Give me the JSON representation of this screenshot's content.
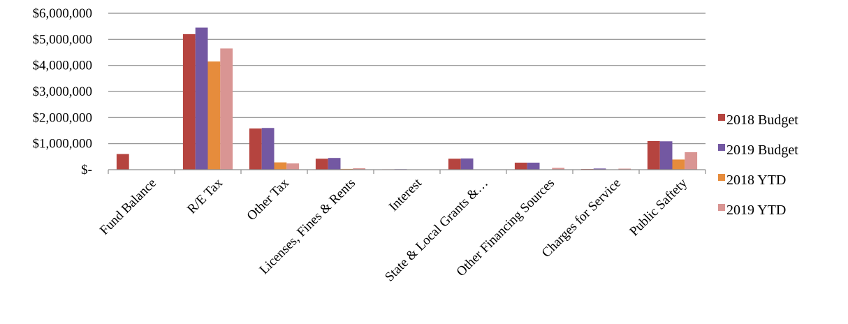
{
  "chart_data": {
    "type": "bar",
    "title": "",
    "xlabel": "",
    "ylabel": "",
    "ylim": [
      0,
      6000000
    ],
    "yticks": [
      {
        "value": 0,
        "label": "$-"
      },
      {
        "value": 1000000,
        "label": "$1,000,000"
      },
      {
        "value": 2000000,
        "label": "$2,000,000"
      },
      {
        "value": 3000000,
        "label": "$3,000,000"
      },
      {
        "value": 4000000,
        "label": "$4,000,000"
      },
      {
        "value": 5000000,
        "label": "$5,000,000"
      },
      {
        "value": 6000000,
        "label": "$6,000,000"
      }
    ],
    "grid": true,
    "legend_position": "right",
    "categories": [
      "Fund Balance",
      "R/E Tax",
      "Other Tax",
      "Licenses, Fines & Rents",
      "Interest",
      "State & Local Grants &…",
      "Other Financing Sources",
      "Charges for Service",
      "Public Saftety"
    ],
    "series": [
      {
        "name": "2018 Budget",
        "color": "#b5443f",
        "values": [
          600000,
          5200000,
          1580000,
          420000,
          15000,
          420000,
          270000,
          25000,
          1100000
        ]
      },
      {
        "name": "2019 Budget",
        "color": "#7358a2",
        "values": [
          0,
          5450000,
          1600000,
          450000,
          20000,
          430000,
          270000,
          45000,
          1090000
        ]
      },
      {
        "name": "2018 YTD",
        "color": "#e68c3c",
        "values": [
          0,
          4150000,
          280000,
          30000,
          5000,
          0,
          0,
          10000,
          390000
        ]
      },
      {
        "name": "2019 YTD",
        "color": "#d99593",
        "values": [
          0,
          4650000,
          240000,
          55000,
          10000,
          0,
          70000,
          40000,
          670000
        ]
      }
    ]
  }
}
